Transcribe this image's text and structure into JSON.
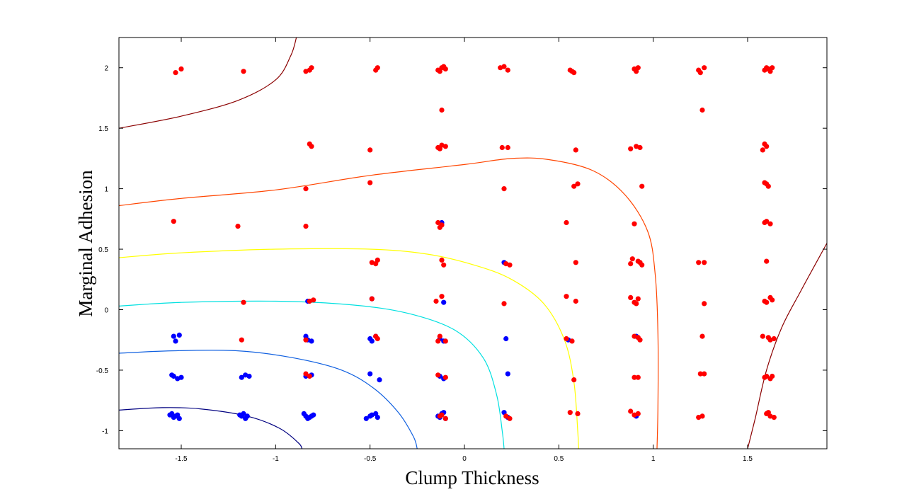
{
  "chart_data": {
    "type": "scatter",
    "title": "",
    "xlabel": "Clump Thickness",
    "ylabel": "Marginal Adhesion",
    "xlim": [
      -1.83,
      1.92
    ],
    "ylim": [
      -1.15,
      2.25
    ],
    "xticks": [
      -1.5,
      -1,
      -0.5,
      0,
      0.5,
      1,
      1.5
    ],
    "xtick_labels": [
      "-1.5",
      "-1",
      "-0.5",
      "0",
      "0.5",
      "1",
      "1.5"
    ],
    "yticks": [
      -1,
      -0.5,
      0,
      0.5,
      1,
      1.5,
      2
    ],
    "ytick_labels": [
      "-1",
      "-0.5",
      "0",
      "0.5",
      "1",
      "1.5",
      "2"
    ],
    "grid": false,
    "series": [
      {
        "color": "#0000ff",
        "points": [
          [
            -1.54,
            -0.89
          ],
          [
            -1.52,
            -0.87
          ],
          [
            -1.55,
            -0.86
          ],
          [
            -1.51,
            -0.9
          ],
          [
            -1.53,
            -0.88
          ],
          [
            -1.56,
            -0.87
          ],
          [
            -1.18,
            -0.88
          ],
          [
            -1.16,
            -0.9
          ],
          [
            -1.19,
            -0.87
          ],
          [
            -1.15,
            -0.88
          ],
          [
            -1.17,
            -0.86
          ],
          [
            -0.84,
            -0.88
          ],
          [
            -0.82,
            -0.89
          ],
          [
            -0.8,
            -0.87
          ],
          [
            -0.85,
            -0.86
          ],
          [
            -0.83,
            -0.9
          ],
          [
            -0.81,
            -0.88
          ],
          [
            -0.5,
            -0.88
          ],
          [
            -0.47,
            -0.86
          ],
          [
            -0.52,
            -0.9
          ],
          [
            -0.49,
            -0.87
          ],
          [
            -0.46,
            -0.89
          ],
          [
            -0.14,
            -0.88
          ],
          [
            -0.12,
            -0.86
          ],
          [
            -0.1,
            -0.9
          ],
          [
            -0.13,
            -0.89
          ],
          [
            -0.11,
            -0.85
          ],
          [
            0.21,
            -0.85
          ],
          [
            0.23,
            -0.89
          ],
          [
            0.91,
            -0.88
          ],
          [
            -1.54,
            -0.55
          ],
          [
            -1.52,
            -0.57
          ],
          [
            -1.55,
            -0.54
          ],
          [
            -1.5,
            -0.56
          ],
          [
            -1.18,
            -0.56
          ],
          [
            -1.16,
            -0.54
          ],
          [
            -1.14,
            -0.55
          ],
          [
            -0.84,
            -0.55
          ],
          [
            -0.81,
            -0.54
          ],
          [
            -0.5,
            -0.53
          ],
          [
            -0.45,
            -0.58
          ],
          [
            -0.13,
            -0.55
          ],
          [
            -0.11,
            -0.57
          ],
          [
            0.23,
            -0.53
          ],
          [
            -1.54,
            -0.22
          ],
          [
            -1.51,
            -0.21
          ],
          [
            -1.53,
            -0.26
          ],
          [
            -0.84,
            -0.22
          ],
          [
            -0.81,
            -0.26
          ],
          [
            -0.83,
            -0.25
          ],
          [
            -0.5,
            -0.24
          ],
          [
            -0.47,
            -0.22
          ],
          [
            -0.49,
            -0.26
          ],
          [
            -0.13,
            -0.24
          ],
          [
            -0.11,
            -0.26
          ],
          [
            0.22,
            -0.24
          ],
          [
            0.55,
            -0.25
          ],
          [
            0.91,
            -0.22
          ],
          [
            -0.83,
            0.07
          ],
          [
            -0.49,
            0.09
          ],
          [
            -0.11,
            0.06
          ],
          [
            -0.12,
            0.72
          ],
          [
            0.21,
            0.39
          ]
        ]
      },
      {
        "color": "#ff0000",
        "points": [
          [
            -1.53,
            1.96
          ],
          [
            -1.5,
            1.99
          ],
          [
            -1.17,
            1.97
          ],
          [
            -0.84,
            1.97
          ],
          [
            -0.81,
            2.0
          ],
          [
            -0.82,
            1.98
          ],
          [
            -0.47,
            1.98
          ],
          [
            -0.46,
            2.0
          ],
          [
            -0.14,
            1.98
          ],
          [
            -0.12,
            2.0
          ],
          [
            -0.1,
            1.99
          ],
          [
            -0.13,
            1.97
          ],
          [
            -0.11,
            2.01
          ],
          [
            0.19,
            2.0
          ],
          [
            0.21,
            2.01
          ],
          [
            0.23,
            1.98
          ],
          [
            0.57,
            1.97
          ],
          [
            0.58,
            1.96
          ],
          [
            0.56,
            1.98
          ],
          [
            0.9,
            1.99
          ],
          [
            0.92,
            2.0
          ],
          [
            0.91,
            1.97
          ],
          [
            1.24,
            1.98
          ],
          [
            1.27,
            2.0
          ],
          [
            1.25,
            1.96
          ],
          [
            1.59,
            1.98
          ],
          [
            1.61,
            1.99
          ],
          [
            1.63,
            2.0
          ],
          [
            1.62,
            1.97
          ],
          [
            1.6,
            2.0
          ],
          [
            -0.12,
            1.65
          ],
          [
            1.26,
            1.65
          ],
          [
            -0.82,
            1.37
          ],
          [
            -0.81,
            1.35
          ],
          [
            -0.5,
            1.32
          ],
          [
            -0.14,
            1.34
          ],
          [
            -0.12,
            1.36
          ],
          [
            -0.1,
            1.35
          ],
          [
            -0.13,
            1.33
          ],
          [
            0.2,
            1.34
          ],
          [
            0.23,
            1.34
          ],
          [
            0.59,
            1.32
          ],
          [
            0.88,
            1.33
          ],
          [
            0.91,
            1.35
          ],
          [
            0.93,
            1.34
          ],
          [
            1.59,
            1.37
          ],
          [
            1.6,
            1.35
          ],
          [
            1.58,
            1.32
          ],
          [
            -0.84,
            1.0
          ],
          [
            -0.5,
            1.05
          ],
          [
            0.21,
            1.0
          ],
          [
            0.58,
            1.02
          ],
          [
            0.6,
            1.04
          ],
          [
            0.94,
            1.02
          ],
          [
            1.6,
            1.04
          ],
          [
            1.61,
            1.02
          ],
          [
            1.59,
            1.05
          ],
          [
            -1.54,
            0.73
          ],
          [
            -1.2,
            0.69
          ],
          [
            -0.84,
            0.69
          ],
          [
            -0.14,
            0.72
          ],
          [
            -0.12,
            0.7
          ],
          [
            -0.13,
            0.68
          ],
          [
            0.54,
            0.72
          ],
          [
            0.9,
            0.71
          ],
          [
            1.6,
            0.73
          ],
          [
            1.62,
            0.71
          ],
          [
            1.59,
            0.72
          ],
          [
            -0.49,
            0.39
          ],
          [
            -0.46,
            0.41
          ],
          [
            -0.47,
            0.38
          ],
          [
            -0.12,
            0.41
          ],
          [
            -0.11,
            0.37
          ],
          [
            0.22,
            0.38
          ],
          [
            0.24,
            0.37
          ],
          [
            0.59,
            0.39
          ],
          [
            0.88,
            0.38
          ],
          [
            0.89,
            0.42
          ],
          [
            0.92,
            0.4
          ],
          [
            0.94,
            0.37
          ],
          [
            0.93,
            0.39
          ],
          [
            1.24,
            0.39
          ],
          [
            1.27,
            0.39
          ],
          [
            1.6,
            0.4
          ],
          [
            -1.17,
            0.06
          ],
          [
            -0.82,
            0.07
          ],
          [
            -0.8,
            0.08
          ],
          [
            -0.49,
            0.09
          ],
          [
            -0.15,
            0.07
          ],
          [
            -0.12,
            0.11
          ],
          [
            0.21,
            0.05
          ],
          [
            0.54,
            0.11
          ],
          [
            0.59,
            0.07
          ],
          [
            0.88,
            0.1
          ],
          [
            0.9,
            0.06
          ],
          [
            0.92,
            0.09
          ],
          [
            0.91,
            0.05
          ],
          [
            1.27,
            0.05
          ],
          [
            1.59,
            0.07
          ],
          [
            1.62,
            0.1
          ],
          [
            1.6,
            0.06
          ],
          [
            1.63,
            0.08
          ],
          [
            -1.18,
            -0.25
          ],
          [
            -0.84,
            -0.25
          ],
          [
            -0.47,
            -0.22
          ],
          [
            -0.46,
            -0.24
          ],
          [
            -0.13,
            -0.22
          ],
          [
            -0.14,
            -0.26
          ],
          [
            -0.1,
            -0.26
          ],
          [
            0.54,
            -0.24
          ],
          [
            0.57,
            -0.26
          ],
          [
            0.9,
            -0.22
          ],
          [
            0.93,
            -0.25
          ],
          [
            0.92,
            -0.23
          ],
          [
            1.26,
            -0.22
          ],
          [
            1.58,
            -0.22
          ],
          [
            1.62,
            -0.25
          ],
          [
            1.64,
            -0.24
          ],
          [
            1.61,
            -0.23
          ],
          [
            -0.84,
            -0.53
          ],
          [
            -0.82,
            -0.55
          ],
          [
            -0.14,
            -0.54
          ],
          [
            -0.1,
            -0.56
          ],
          [
            0.58,
            -0.58
          ],
          [
            0.9,
            -0.56
          ],
          [
            0.92,
            -0.56
          ],
          [
            1.25,
            -0.53
          ],
          [
            1.27,
            -0.53
          ],
          [
            1.6,
            -0.55
          ],
          [
            1.62,
            -0.57
          ],
          [
            1.63,
            -0.55
          ],
          [
            1.59,
            -0.56
          ],
          [
            -0.12,
            -0.87
          ],
          [
            -0.1,
            -0.9
          ],
          [
            -0.13,
            -0.88
          ],
          [
            0.22,
            -0.88
          ],
          [
            0.24,
            -0.9
          ],
          [
            0.56,
            -0.85
          ],
          [
            0.6,
            -0.86
          ],
          [
            0.88,
            -0.84
          ],
          [
            0.92,
            -0.86
          ],
          [
            0.9,
            -0.87
          ],
          [
            1.24,
            -0.89
          ],
          [
            1.26,
            -0.88
          ],
          [
            1.6,
            -0.86
          ],
          [
            1.62,
            -0.88
          ],
          [
            1.64,
            -0.89
          ],
          [
            1.61,
            -0.85
          ]
        ]
      }
    ],
    "contours": [
      {
        "color": "#8b0000",
        "points": [
          [
            -1.83,
            1.5
          ],
          [
            -1.5,
            1.6
          ],
          [
            -1.2,
            1.73
          ],
          [
            -1.0,
            1.9
          ],
          [
            -0.92,
            2.1
          ],
          [
            -0.89,
            2.25
          ]
        ]
      },
      {
        "color": "#8b0000",
        "points": [
          [
            1.5,
            -1.15
          ],
          [
            1.54,
            -0.9
          ],
          [
            1.6,
            -0.5
          ],
          [
            1.68,
            -0.15
          ],
          [
            1.78,
            0.15
          ],
          [
            1.92,
            0.55
          ]
        ]
      },
      {
        "color": "#ff4500",
        "points": [
          [
            -1.83,
            0.86
          ],
          [
            -1.5,
            0.92
          ],
          [
            -1.0,
            0.99
          ],
          [
            -0.5,
            1.11
          ],
          [
            0.0,
            1.2
          ],
          [
            0.25,
            1.25
          ],
          [
            0.45,
            1.24
          ],
          [
            0.68,
            1.15
          ],
          [
            0.85,
            0.95
          ],
          [
            0.97,
            0.65
          ],
          [
            1.01,
            0.3
          ],
          [
            1.025,
            -0.2
          ],
          [
            1.025,
            -0.8
          ],
          [
            1.02,
            -1.15
          ]
        ]
      },
      {
        "color": "#ffff00",
        "points": [
          [
            -1.83,
            0.43
          ],
          [
            -1.5,
            0.47
          ],
          [
            -1.0,
            0.5
          ],
          [
            -0.5,
            0.5
          ],
          [
            -0.2,
            0.46
          ],
          [
            0.05,
            0.37
          ],
          [
            0.25,
            0.25
          ],
          [
            0.42,
            0.05
          ],
          [
            0.53,
            -0.25
          ],
          [
            0.58,
            -0.6
          ],
          [
            0.6,
            -1.0
          ],
          [
            0.605,
            -1.15
          ]
        ]
      },
      {
        "color": "#00e0e0",
        "points": [
          [
            -1.83,
            0.03
          ],
          [
            -1.5,
            0.06
          ],
          [
            -1.0,
            0.07
          ],
          [
            -0.6,
            0.04
          ],
          [
            -0.3,
            -0.03
          ],
          [
            -0.05,
            -0.17
          ],
          [
            0.1,
            -0.4
          ],
          [
            0.17,
            -0.7
          ],
          [
            0.2,
            -1.0
          ],
          [
            0.21,
            -1.15
          ]
        ]
      },
      {
        "color": "#1060e0",
        "points": [
          [
            -1.83,
            -0.36
          ],
          [
            -1.55,
            -0.34
          ],
          [
            -1.2,
            -0.34
          ],
          [
            -0.9,
            -0.4
          ],
          [
            -0.65,
            -0.5
          ],
          [
            -0.48,
            -0.65
          ],
          [
            -0.35,
            -0.85
          ],
          [
            -0.27,
            -1.05
          ],
          [
            -0.25,
            -1.15
          ]
        ]
      },
      {
        "color": "#000080",
        "points": [
          [
            -1.83,
            -0.83
          ],
          [
            -1.6,
            -0.81
          ],
          [
            -1.4,
            -0.82
          ],
          [
            -1.15,
            -0.88
          ],
          [
            -0.98,
            -0.98
          ],
          [
            -0.88,
            -1.1
          ],
          [
            -0.86,
            -1.15
          ]
        ]
      }
    ]
  }
}
